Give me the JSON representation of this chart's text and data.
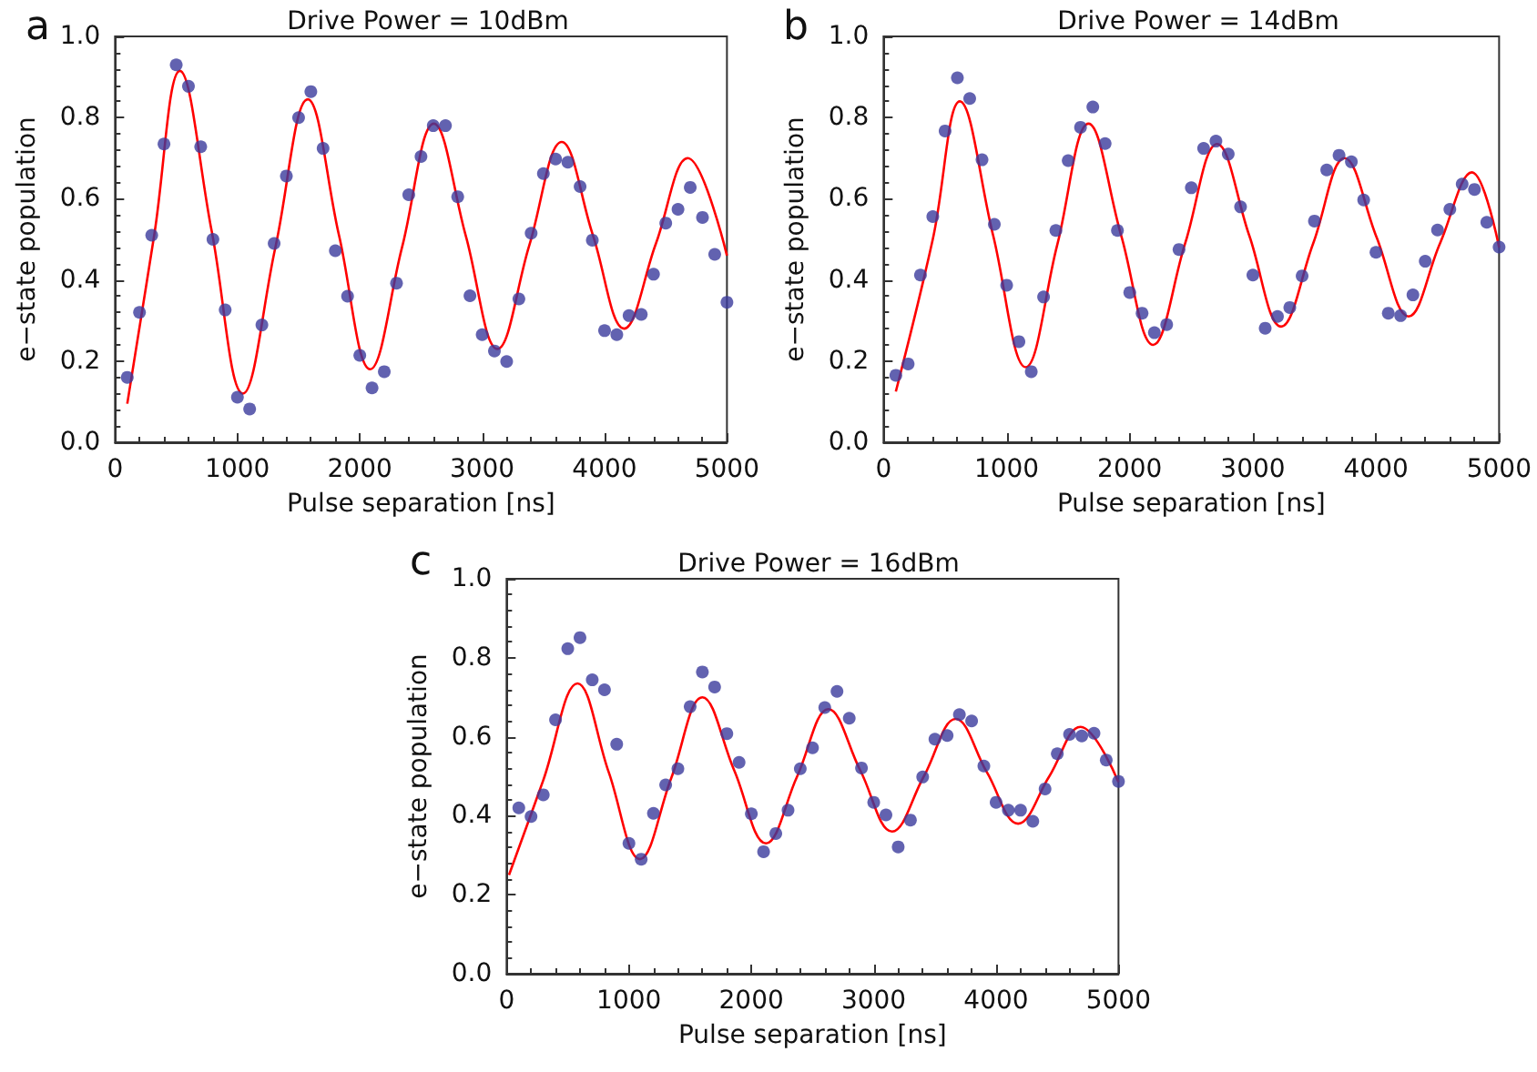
{
  "chart_data": [
    {
      "type": "scatter",
      "title": "Drive Power = 10dBm",
      "xlabel": "Pulse separation [ns]",
      "ylabel": "e−state population",
      "annotations": [
        "a"
      ],
      "xlim": [
        0,
        5000
      ],
      "xticks": [
        0,
        1000,
        2000,
        3000,
        4000,
        5000
      ],
      "ylim": [
        0,
        1
      ],
      "yticks": [
        {
          "value": 0,
          "label": "0.0"
        },
        {
          "value": 0.2,
          "label": "0.2"
        },
        {
          "value": 0.4,
          "label": "0.4"
        },
        {
          "value": 0.6,
          "label": "0.6"
        },
        {
          "value": 0.8,
          "label": "0.8"
        },
        {
          "value": 1,
          "label": "1.0"
        }
      ],
      "x": [
        100,
        200,
        300,
        400,
        500,
        600,
        700,
        800,
        900,
        1000,
        1100,
        1200,
        1300,
        1400,
        1500,
        1600,
        1700,
        1800,
        1900,
        2000,
        2100,
        2200,
        2300,
        2400,
        2500,
        2600,
        2700,
        2800,
        2900,
        3000,
        3100,
        3200,
        3300,
        3400,
        3500,
        3600,
        3700,
        3800,
        3900,
        4000,
        4100,
        4200,
        4300,
        4400,
        4500,
        4600,
        4700,
        4800,
        4900,
        5000
      ],
      "series": [
        {
          "marker": "circle",
          "color": "#3b3b9c",
          "values": [
            0.16,
            0.32,
            0.51,
            0.735,
            0.93,
            0.877,
            0.728,
            0.5,
            0.326,
            0.111,
            0.082,
            0.289,
            0.49,
            0.656,
            0.8,
            0.864,
            0.724,
            0.472,
            0.36,
            0.214,
            0.134,
            0.174,
            0.392,
            0.61,
            0.704,
            0.78,
            0.78,
            0.605,
            0.361,
            0.265,
            0.225,
            0.199,
            0.353,
            0.515,
            0.662,
            0.698,
            0.69,
            0.63,
            0.498,
            0.275,
            0.265,
            0.312,
            0.315,
            0.414,
            0.54,
            0.574,
            0.628,
            0.554,
            0.463,
            0.345
          ]
        },
        {
          "type": "line",
          "marker": "none",
          "color": "#ff0000",
          "x": [
            100,
            320,
            530,
            790,
            1045,
            1310,
            1575,
            1830,
            2085,
            2345,
            2605,
            2865,
            3125,
            3385,
            3650,
            3905,
            4160,
            4420,
            4680,
            5000
          ],
          "values": [
            0.095,
            0.51,
            0.915,
            0.52,
            0.12,
            0.48,
            0.845,
            0.51,
            0.18,
            0.48,
            0.785,
            0.51,
            0.23,
            0.485,
            0.74,
            0.51,
            0.28,
            0.49,
            0.7,
            0.46
          ]
        }
      ]
    },
    {
      "type": "scatter",
      "title": "Drive Power = 14dBm",
      "xlabel": "Pulse separation [ns]",
      "ylabel": "e−state population",
      "annotations": [
        "b"
      ],
      "xlim": [
        0,
        5000
      ],
      "xticks": [
        0,
        1000,
        2000,
        3000,
        4000,
        5000
      ],
      "ylim": [
        0,
        1
      ],
      "yticks": [
        {
          "value": 0,
          "label": "0.0"
        },
        {
          "value": 0.2,
          "label": "0.2"
        },
        {
          "value": 0.4,
          "label": "0.4"
        },
        {
          "value": 0.6,
          "label": "0.6"
        },
        {
          "value": 0.8,
          "label": "0.8"
        },
        {
          "value": 1,
          "label": "1.0"
        }
      ],
      "x": [
        100,
        200,
        300,
        400,
        500,
        600,
        700,
        800,
        900,
        1000,
        1100,
        1200,
        1300,
        1400,
        1500,
        1600,
        1700,
        1800,
        1900,
        2000,
        2100,
        2200,
        2300,
        2400,
        2500,
        2600,
        2700,
        2800,
        2900,
        3000,
        3100,
        3200,
        3300,
        3400,
        3500,
        3600,
        3700,
        3800,
        3900,
        4000,
        4100,
        4200,
        4300,
        4400,
        4500,
        4600,
        4700,
        4800,
        4900,
        5000
      ],
      "series": [
        {
          "marker": "circle",
          "color": "#3b3b9c",
          "values": [
            0.165,
            0.193,
            0.412,
            0.556,
            0.767,
            0.898,
            0.847,
            0.696,
            0.537,
            0.387,
            0.248,
            0.174,
            0.358,
            0.522,
            0.694,
            0.776,
            0.826,
            0.736,
            0.522,
            0.369,
            0.318,
            0.27,
            0.29,
            0.475,
            0.627,
            0.724,
            0.742,
            0.71,
            0.58,
            0.412,
            0.281,
            0.31,
            0.332,
            0.41,
            0.545,
            0.671,
            0.707,
            0.691,
            0.597,
            0.468,
            0.318,
            0.312,
            0.363,
            0.446,
            0.523,
            0.574,
            0.636,
            0.623,
            0.542,
            0.481
          ]
        },
        {
          "type": "line",
          "marker": "none",
          "color": "#ff0000",
          "x": [
            100,
            400,
            620,
            890,
            1155,
            1410,
            1665,
            1930,
            2190,
            2450,
            2710,
            2970,
            3230,
            3490,
            3745,
            4005,
            4265,
            4520,
            4780,
            5000
          ],
          "values": [
            0.125,
            0.5,
            0.84,
            0.51,
            0.185,
            0.485,
            0.785,
            0.51,
            0.24,
            0.49,
            0.735,
            0.51,
            0.285,
            0.49,
            0.7,
            0.505,
            0.31,
            0.49,
            0.665,
            0.48
          ]
        }
      ]
    },
    {
      "type": "scatter",
      "title": "Drive Power = 16dBm",
      "xlabel": "Pulse separation [ns]",
      "ylabel": "e−state population",
      "annotations": [
        "c"
      ],
      "xlim": [
        0,
        5000
      ],
      "xticks": [
        0,
        1000,
        2000,
        3000,
        4000,
        5000
      ],
      "ylim": [
        0,
        1
      ],
      "yticks": [
        {
          "value": 0,
          "label": "0.0"
        },
        {
          "value": 0.2,
          "label": "0.2"
        },
        {
          "value": 0.4,
          "label": "0.4"
        },
        {
          "value": 0.6,
          "label": "0.6"
        },
        {
          "value": 0.8,
          "label": "0.8"
        },
        {
          "value": 1,
          "label": "1.0"
        }
      ],
      "x": [
        100,
        200,
        300,
        400,
        500,
        600,
        700,
        800,
        900,
        1000,
        1100,
        1200,
        1300,
        1400,
        1500,
        1600,
        1700,
        1800,
        1900,
        2000,
        2100,
        2200,
        2300,
        2400,
        2500,
        2600,
        2700,
        2800,
        2900,
        3000,
        3100,
        3200,
        3300,
        3400,
        3500,
        3600,
        3700,
        3800,
        3900,
        4000,
        4100,
        4200,
        4300,
        4400,
        4500,
        4600,
        4700,
        4800,
        4900,
        5000
      ],
      "series": [
        {
          "marker": "circle",
          "color": "#3b3b9c",
          "values": [
            0.42,
            0.398,
            0.453,
            0.643,
            0.823,
            0.851,
            0.744,
            0.719,
            0.581,
            0.33,
            0.29,
            0.406,
            0.478,
            0.519,
            0.676,
            0.764,
            0.726,
            0.608,
            0.535,
            0.405,
            0.309,
            0.355,
            0.414,
            0.519,
            0.572,
            0.674,
            0.715,
            0.647,
            0.521,
            0.434,
            0.402,
            0.321,
            0.389,
            0.498,
            0.594,
            0.603,
            0.656,
            0.64,
            0.526,
            0.434,
            0.414,
            0.414,
            0.386,
            0.468,
            0.557,
            0.606,
            0.602,
            0.609,
            0.541,
            0.487
          ]
        },
        {
          "type": "line",
          "marker": "none",
          "color": "#ff0000",
          "x": [
            20,
            300,
            580,
            835,
            1090,
            1345,
            1600,
            1860,
            2120,
            2375,
            2630,
            2890,
            3150,
            3410,
            3670,
            3925,
            4180,
            4435,
            4690,
            5000
          ],
          "values": [
            0.25,
            0.49,
            0.735,
            0.51,
            0.29,
            0.495,
            0.7,
            0.515,
            0.33,
            0.5,
            0.67,
            0.515,
            0.36,
            0.5,
            0.645,
            0.51,
            0.38,
            0.5,
            0.625,
            0.485
          ]
        }
      ]
    }
  ]
}
